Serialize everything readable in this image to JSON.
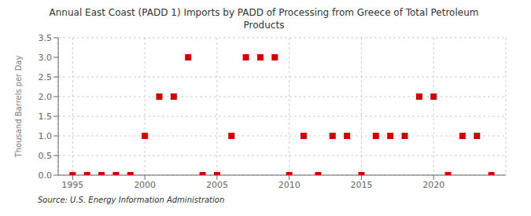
{
  "chart_data": {
    "type": "scatter",
    "title": "Annual East Coast (PADD 1) Imports by PADD of Processing from Greece of Total Petroleum\nProducts",
    "ylabel": "Thousand Barrels per Day",
    "annotation": "Source: U.S. Energy Information Administration",
    "x": [
      1995,
      1996,
      1997,
      1998,
      1999,
      2000,
      2001,
      2002,
      2003,
      2004,
      2005,
      2006,
      2007,
      2008,
      2009,
      2010,
      2011,
      2012,
      2013,
      2014,
      2015,
      2016,
      2017,
      2018,
      2019,
      2020,
      2021,
      2022,
      2023,
      2024
    ],
    "values": [
      0,
      0,
      0,
      0,
      0,
      1,
      2,
      2,
      3,
      0,
      0,
      1,
      3,
      3,
      3,
      0,
      1,
      0,
      1,
      1,
      0,
      1,
      1,
      1,
      2,
      2,
      0,
      1,
      1,
      0
    ],
    "color": "#cc0000",
    "marker": "square",
    "xlim": [
      1994,
      2025
    ],
    "xticks": [
      1995,
      2000,
      2005,
      2010,
      2015,
      2020
    ],
    "ylim": [
      0,
      3.5
    ],
    "yticks": [
      {
        "value": 0,
        "label": "0.0"
      },
      0.5,
      {
        "value": 1,
        "label": "1.0"
      },
      1.5,
      {
        "value": 2,
        "label": "2.0"
      },
      2.5,
      {
        "value": 3,
        "label": "3.0"
      },
      3.5
    ],
    "grid": true
  }
}
